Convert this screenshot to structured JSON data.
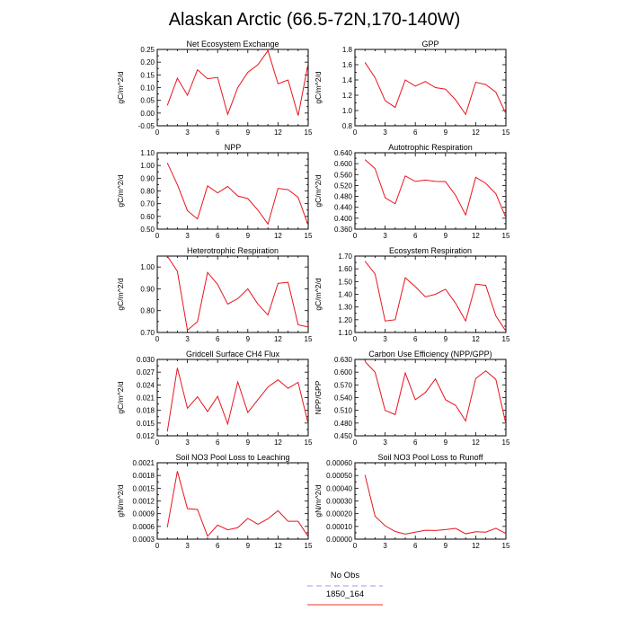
{
  "title": "Alaskan Arctic (66.5-72N,170-140W)",
  "legend": {
    "entries": [
      {
        "label": "No Obs",
        "color": "#9999ee",
        "dash": true
      },
      {
        "label": "1850_164",
        "color": "#ee3322",
        "dash": false
      }
    ]
  },
  "colors": {
    "series": "#e8141e",
    "axis": "#000000"
  },
  "chart_data": [
    {
      "type": "line",
      "title": "Net Ecosystem Exchange",
      "ylabel": "gC/m^2/d",
      "xlim": [
        0,
        15
      ],
      "ylim": [
        -0.05,
        0.25
      ],
      "xticks": [
        0,
        3,
        6,
        9,
        12,
        15
      ],
      "yticks": [
        "-0.05",
        "0.00",
        "0.05",
        "0.10",
        "0.15",
        "0.20",
        "0.25"
      ],
      "x": [
        1,
        2,
        3,
        4,
        5,
        6,
        7,
        8,
        9,
        10,
        11,
        12,
        13,
        14,
        15
      ],
      "values": [
        0.03,
        0.137,
        0.07,
        0.17,
        0.135,
        0.14,
        -0.005,
        0.1,
        0.16,
        0.19,
        0.245,
        0.115,
        0.13,
        -0.01,
        0.195
      ]
    },
    {
      "type": "line",
      "title": "GPP",
      "ylabel": "gC/m^2/d",
      "xlim": [
        0,
        15
      ],
      "ylim": [
        0.8,
        1.8
      ],
      "xticks": [
        0,
        3,
        6,
        9,
        12,
        15
      ],
      "yticks": [
        "0.8",
        "1.0",
        "1.2",
        "1.4",
        "1.6",
        "1.8"
      ],
      "x": [
        1,
        2,
        3,
        4,
        5,
        6,
        7,
        8,
        9,
        10,
        11,
        12,
        13,
        14,
        15
      ],
      "values": [
        1.63,
        1.43,
        1.13,
        1.04,
        1.4,
        1.32,
        1.38,
        1.3,
        1.28,
        1.14,
        0.95,
        1.37,
        1.34,
        1.24,
        0.96
      ]
    },
    {
      "type": "line",
      "title": "NPP",
      "ylabel": "gC/m^2/d",
      "xlim": [
        0,
        15
      ],
      "ylim": [
        0.5,
        1.1
      ],
      "xticks": [
        0,
        3,
        6,
        9,
        12,
        15
      ],
      "yticks": [
        "0.50",
        "0.60",
        "0.70",
        "0.80",
        "0.90",
        "1.00",
        "1.10"
      ],
      "x": [
        1,
        2,
        3,
        4,
        5,
        6,
        7,
        8,
        9,
        10,
        11,
        12,
        13,
        14,
        15
      ],
      "values": [
        1.02,
        0.85,
        0.645,
        0.58,
        0.84,
        0.785,
        0.835,
        0.76,
        0.74,
        0.65,
        0.54,
        0.82,
        0.81,
        0.75,
        0.53
      ]
    },
    {
      "type": "line",
      "title": "Autotrophic Respiration",
      "ylabel": "gC/m^2/d",
      "xlim": [
        0,
        15
      ],
      "ylim": [
        0.36,
        0.64
      ],
      "xticks": [
        0,
        3,
        6,
        9,
        12,
        15
      ],
      "yticks": [
        "0.360",
        "0.400",
        "0.440",
        "0.480",
        "0.520",
        "0.560",
        "0.600",
        "0.640"
      ],
      "x": [
        1,
        2,
        3,
        4,
        5,
        6,
        7,
        8,
        9,
        10,
        11,
        12,
        13,
        14,
        15
      ],
      "values": [
        0.615,
        0.582,
        0.475,
        0.453,
        0.555,
        0.535,
        0.54,
        0.535,
        0.534,
        0.484,
        0.412,
        0.55,
        0.528,
        0.49,
        0.402
      ]
    },
    {
      "type": "line",
      "title": "Heterotrophic Respiration",
      "ylabel": "gC/m^2/d",
      "xlim": [
        0,
        15
      ],
      "ylim": [
        0.7,
        1.05
      ],
      "xticks": [
        0,
        3,
        6,
        9,
        12,
        15
      ],
      "yticks": [
        "0.70",
        "0.80",
        "0.90",
        "1.00"
      ],
      "x": [
        1,
        2,
        3,
        4,
        5,
        6,
        7,
        8,
        9,
        10,
        11,
        12,
        13,
        14,
        15
      ],
      "values": [
        1.05,
        0.98,
        0.71,
        0.75,
        0.975,
        0.92,
        0.83,
        0.855,
        0.9,
        0.83,
        0.78,
        0.925,
        0.93,
        0.735,
        0.725
      ]
    },
    {
      "type": "line",
      "title": "Ecosystem Respiration",
      "ylabel": "gC/m^2/d",
      "xlim": [
        0,
        15
      ],
      "ylim": [
        1.1,
        1.7
      ],
      "xticks": [
        0,
        3,
        6,
        9,
        12,
        15
      ],
      "yticks": [
        "1.10",
        "1.20",
        "1.30",
        "1.40",
        "1.50",
        "1.60",
        "1.70"
      ],
      "x": [
        1,
        2,
        3,
        4,
        5,
        6,
        7,
        8,
        9,
        10,
        11,
        12,
        13,
        14,
        15
      ],
      "values": [
        1.66,
        1.56,
        1.19,
        1.2,
        1.53,
        1.46,
        1.38,
        1.4,
        1.44,
        1.33,
        1.19,
        1.48,
        1.47,
        1.23,
        1.11
      ]
    },
    {
      "type": "line",
      "title": "Gridcell Surface CH4 Flux",
      "ylabel": "gC/m^2/d",
      "xlim": [
        0,
        15
      ],
      "ylim": [
        0.012,
        0.03
      ],
      "xticks": [
        0,
        3,
        6,
        9,
        12,
        15
      ],
      "yticks": [
        "0.012",
        "0.015",
        "0.018",
        "0.021",
        "0.024",
        "0.027",
        "0.030"
      ],
      "x": [
        1,
        2,
        3,
        4,
        5,
        6,
        7,
        8,
        9,
        10,
        11,
        12,
        13,
        14,
        15
      ],
      "values": [
        0.013,
        0.028,
        0.0185,
        0.0212,
        0.0177,
        0.0213,
        0.0148,
        0.0247,
        0.0175,
        0.0205,
        0.0235,
        0.0252,
        0.0232,
        0.0246,
        0.0148
      ]
    },
    {
      "type": "line",
      "title": "Carbon Use Efficiency (NPP/GPP)",
      "ylabel": "NPP/GPP",
      "xlim": [
        0,
        15
      ],
      "ylim": [
        0.45,
        0.63
      ],
      "xticks": [
        0,
        3,
        6,
        9,
        12,
        15
      ],
      "yticks": [
        "0.450",
        "0.480",
        "0.510",
        "0.540",
        "0.570",
        "0.600",
        "0.630"
      ],
      "x": [
        1,
        2,
        3,
        4,
        5,
        6,
        7,
        8,
        9,
        10,
        11,
        12,
        13,
        14,
        15
      ],
      "values": [
        0.625,
        0.6,
        0.51,
        0.5,
        0.598,
        0.535,
        0.552,
        0.584,
        0.535,
        0.522,
        0.485,
        0.585,
        0.603,
        0.583,
        0.478
      ]
    },
    {
      "type": "line",
      "title": "Soil NO3 Pool Loss to Leaching",
      "ylabel": "gN/m^2/d",
      "xlim": [
        0,
        15
      ],
      "ylim": [
        0.0003,
        0.0021
      ],
      "xticks": [
        0,
        3,
        6,
        9,
        12,
        15
      ],
      "yticks": [
        "0.0003",
        "0.0006",
        "0.0009",
        "0.0012",
        "0.0015",
        "0.0018",
        "0.0021"
      ],
      "x": [
        1,
        2,
        3,
        4,
        5,
        6,
        7,
        8,
        9,
        10,
        11,
        12,
        13,
        14,
        15
      ],
      "values": [
        0.00058,
        0.0019,
        0.00102,
        0.001,
        0.00037,
        0.00063,
        0.00052,
        0.00057,
        0.00079,
        0.00065,
        0.00078,
        0.00097,
        0.00072,
        0.00072,
        0.00036
      ]
    },
    {
      "type": "line",
      "title": "Soil NO3 Pool Loss to Runoff",
      "ylabel": "gN/m^2/d",
      "xlim": [
        0,
        15
      ],
      "ylim": [
        0,
        0.0006
      ],
      "xticks": [
        0,
        3,
        6,
        9,
        12,
        15
      ],
      "yticks": [
        "0.00000",
        "0.00010",
        "0.00020",
        "0.00030",
        "0.00040",
        "0.00050",
        "0.00060"
      ],
      "x": [
        1,
        2,
        3,
        4,
        5,
        6,
        7,
        8,
        9,
        10,
        11,
        12,
        13,
        14,
        15
      ],
      "values": [
        0.000505,
        0.00018,
        0.000105,
        6e-05,
        4e-05,
        5.5e-05,
        7e-05,
        6.8e-05,
        7.5e-05,
        8.5e-05,
        4.2e-05,
        5.8e-05,
        5.5e-05,
        8.5e-05,
        4.5e-05
      ]
    }
  ]
}
